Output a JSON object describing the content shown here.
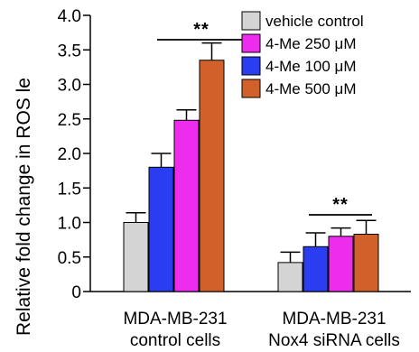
{
  "chart_data": {
    "type": "bar",
    "ylabel": "Relative fold change in ROS le",
    "ylim": [
      0,
      4.0
    ],
    "yticks": [
      "0",
      "0.5",
      "1.0",
      "1.5",
      "2.0",
      "2.5",
      "3.0",
      "3.5",
      "4.0"
    ],
    "yticks_values": [
      0,
      0.5,
      1.0,
      1.5,
      2.0,
      2.5,
      3.0,
      3.5,
      4.0
    ],
    "groups": [
      {
        "label_line1": "MDA-MB-231",
        "label_line2": "control cells",
        "significance": "**"
      },
      {
        "label_line1": "MDA-MB-231",
        "label_line2": "Nox4 siRNA cells",
        "significance": "**"
      }
    ],
    "series": [
      {
        "name": "vehicle control",
        "color": "#d4d4d4",
        "values": [
          1.0,
          0.42
        ],
        "errors": [
          0.14,
          0.15
        ]
      },
      {
        "name": "4-Me 100 μM",
        "color": "#2b3df0",
        "values": [
          1.8,
          0.65
        ],
        "errors": [
          0.2,
          0.2
        ]
      },
      {
        "name": "4-Me 250 μM",
        "color": "#ee2cee",
        "values": [
          2.48,
          0.8
        ],
        "errors": [
          0.15,
          0.12
        ]
      },
      {
        "name": "4-Me 500 μM",
        "color": "#d2602a",
        "values": [
          3.35,
          0.83
        ],
        "errors": [
          0.25,
          0.2
        ]
      }
    ],
    "legend_order": [
      0,
      2,
      1,
      3
    ],
    "legend_position": "top-right",
    "grid": false
  }
}
